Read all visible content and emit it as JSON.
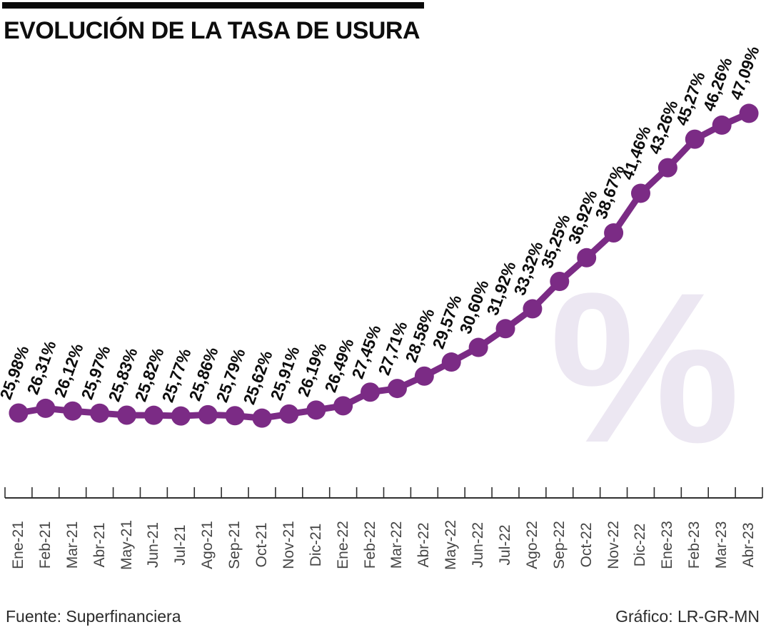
{
  "header": {
    "title": "EVOLUCIÓN DE LA TASA DE USURA"
  },
  "watermark": "%",
  "footer": {
    "source": "Fuente: Superfinanciera",
    "credit": "Gráfico: LR-GR-MN"
  },
  "chart_data": {
    "type": "line",
    "title": "EVOLUCIÓN DE LA TASA DE USURA",
    "categories": [
      "Ene-21",
      "Feb-21",
      "Mar-21",
      "Abr-21",
      "May-21",
      "Jun-21",
      "Jul-21",
      "Ago-21",
      "Sep-21",
      "Oct-21",
      "Nov-21",
      "Dic-21",
      "Ene-22",
      "Feb-22",
      "Mar-22",
      "Abr-22",
      "May-22",
      "Jun-22",
      "Jul-22",
      "Ago-22",
      "Sep-22",
      "Oct-22",
      "Nov-22",
      "Dic-22",
      "Ene-23",
      "Feb-23",
      "Mar-23",
      "Abr-23"
    ],
    "values": [
      25.98,
      26.31,
      26.12,
      25.97,
      25.83,
      25.82,
      25.77,
      25.86,
      25.79,
      25.62,
      25.91,
      26.19,
      26.49,
      27.45,
      27.71,
      28.58,
      29.57,
      30.6,
      31.92,
      33.32,
      35.25,
      36.92,
      38.67,
      41.46,
      43.26,
      45.27,
      46.26,
      47.09
    ],
    "point_labels": [
      "25,98%",
      "26,31%",
      "26,12%",
      "25,97%",
      "25,83%",
      "25,82%",
      "25,77%",
      "25,86%",
      "25,79%",
      "25,62%",
      "25,91%",
      "26,19%",
      "26,49%",
      "27,45%",
      "27,71%",
      "28,58%",
      "29,57%",
      "30,60%",
      "31,92%",
      "33,32%",
      "35,25%",
      "36,92%",
      "38,67%",
      "41,46%",
      "43,26%",
      "45,27%",
      "46,26%",
      "47,09%"
    ],
    "xlabel": "",
    "ylabel": "",
    "line_color": "#7B2B85",
    "label_color": "#0c0c0c",
    "axis_color": "#2f2f2f",
    "grid": false,
    "legend": "none",
    "value_range_shown": [
      25.62,
      47.09
    ]
  }
}
